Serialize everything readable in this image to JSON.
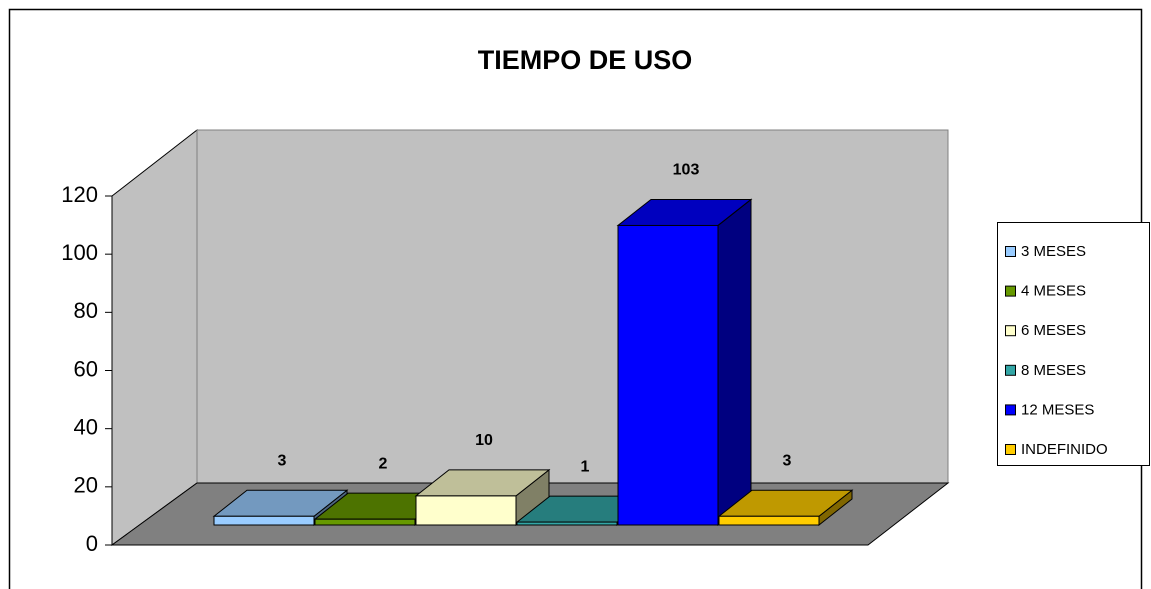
{
  "chart_data": {
    "type": "bar3d",
    "title": "TIEMPO DE USO",
    "series": [
      {
        "name": "3 MESES",
        "color": "#99ccff",
        "values": [
          3
        ]
      },
      {
        "name": "4 MESES",
        "color": "#669900",
        "values": [
          2
        ]
      },
      {
        "name": "6 MESES",
        "color": "#ffffcc",
        "values": [
          10
        ]
      },
      {
        "name": "8 MESES",
        "color": "#33a6a6",
        "values": [
          1
        ]
      },
      {
        "name": "12 MESES",
        "color": "#0000ff",
        "values": [
          103
        ]
      },
      {
        "name": "INDEFINIDO",
        "color": "#ffcc00",
        "values": [
          3
        ]
      }
    ],
    "ylim": [
      0,
      120
    ],
    "yticks": [
      0,
      20,
      40,
      60,
      80,
      100,
      120
    ],
    "legend": "right"
  }
}
